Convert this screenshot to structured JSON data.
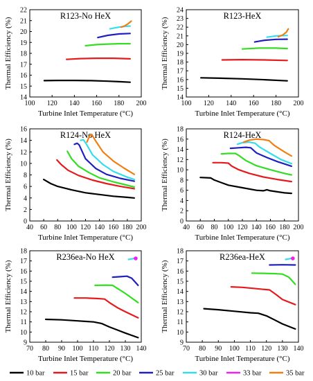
{
  "figure": {
    "series_colors": {
      "10 bar": "#000000",
      "15 bar": "#e41a1c",
      "20 bar": "#33dd22",
      "25 bar": "#1f1fbf",
      "30 bar": "#33ddee",
      "33 bar": "#ee22ee",
      "35 bar": "#f07f12"
    },
    "legend": {
      "placement": "bottom",
      "items": [
        {
          "label": "10 bar",
          "color": "#000000"
        },
        {
          "label": "15 bar",
          "color": "#e41a1c"
        },
        {
          "label": "20 bar",
          "color": "#33dd22"
        },
        {
          "label": "25 bar",
          "color": "#1f1fbf"
        },
        {
          "label": "30 bar",
          "color": "#33ddee"
        },
        {
          "label": "33 bar",
          "color": "#ee22ee"
        },
        {
          "label": "35 bar",
          "color": "#f07f12"
        }
      ]
    }
  },
  "chart_data": [
    {
      "type": "line",
      "title": "R123-No HeX",
      "xlabel": "Turbine Inlet Temperature (°C)",
      "ylabel": "Thermal Efficiency (%)",
      "xlim": [
        100,
        200
      ],
      "ylim": [
        14,
        22
      ],
      "xticks": [
        100,
        120,
        140,
        160,
        180,
        200
      ],
      "yticks": [
        14,
        15,
        16,
        17,
        18,
        19,
        20,
        21,
        22
      ],
      "grid": false,
      "series": [
        {
          "name": "10 bar",
          "color": "#000000",
          "x": [
            113,
            125,
            140,
            155,
            170,
            180,
            190
          ],
          "y": [
            15.5,
            15.52,
            15.52,
            15.5,
            15.45,
            15.4,
            15.35
          ]
        },
        {
          "name": "15 bar",
          "color": "#e41a1c",
          "x": [
            133,
            145,
            160,
            175,
            190
          ],
          "y": [
            17.45,
            17.52,
            17.55,
            17.55,
            17.5
          ]
        },
        {
          "name": "20 bar",
          "color": "#33dd22",
          "x": [
            150,
            160,
            170,
            180,
            190
          ],
          "y": [
            18.7,
            18.8,
            18.85,
            18.88,
            18.88
          ]
        },
        {
          "name": "25 bar",
          "color": "#1f1fbf",
          "x": [
            161,
            170,
            180,
            190
          ],
          "y": [
            19.45,
            19.65,
            19.78,
            19.82
          ]
        },
        {
          "name": "30 bar",
          "color": "#33ddee",
          "x": [
            172,
            180,
            186,
            190
          ],
          "y": [
            20.25,
            20.4,
            20.48,
            20.5
          ]
        },
        {
          "name": "35 bar",
          "color": "#f07f12",
          "x": [
            182,
            185,
            188,
            191
          ],
          "y": [
            20.4,
            20.5,
            20.7,
            20.95
          ]
        }
      ]
    },
    {
      "type": "line",
      "title": "R123-HeX",
      "xlabel": "Turbine Inlet Temperature (°C)",
      "ylabel": "Thermal Efficiency (%)",
      "xlim": [
        100,
        200
      ],
      "ylim": [
        14,
        24
      ],
      "xticks": [
        100,
        120,
        140,
        160,
        180,
        200
      ],
      "yticks": [
        14,
        15,
        16,
        17,
        18,
        19,
        20,
        21,
        22,
        23,
        24
      ],
      "grid": false,
      "series": [
        {
          "name": "10 bar",
          "color": "#000000",
          "x": [
            113,
            130,
            150,
            170,
            190
          ],
          "y": [
            16.2,
            16.15,
            16.08,
            15.98,
            15.85
          ]
        },
        {
          "name": "15 bar",
          "color": "#e41a1c",
          "x": [
            132,
            150,
            170,
            190
          ],
          "y": [
            18.25,
            18.28,
            18.25,
            18.18
          ]
        },
        {
          "name": "20 bar",
          "color": "#33dd22",
          "x": [
            150,
            165,
            180,
            190
          ],
          "y": [
            19.5,
            19.6,
            19.6,
            19.55
          ]
        },
        {
          "name": "25 bar",
          "color": "#1f1fbf",
          "x": [
            161,
            170,
            180,
            190
          ],
          "y": [
            20.3,
            20.5,
            20.6,
            20.62
          ]
        },
        {
          "name": "30 bar",
          "color": "#33ddee",
          "x": [
            172,
            180,
            190
          ],
          "y": [
            20.85,
            21.0,
            21.05
          ]
        },
        {
          "name": "35 bar",
          "color": "#f07f12",
          "x": [
            182,
            186,
            189,
            191
          ],
          "y": [
            20.9,
            21.1,
            21.4,
            21.8
          ]
        }
      ]
    },
    {
      "type": "line",
      "title": "R124-No HeX",
      "xlabel": "Turbine Inlet Temperature (°C)",
      "ylabel": "Thermal Efficiency (%)",
      "xlim": [
        40,
        200
      ],
      "ylim": [
        0,
        16
      ],
      "xticks": [
        40,
        60,
        80,
        100,
        120,
        140,
        160,
        180,
        200
      ],
      "yticks": [
        0,
        2,
        4,
        6,
        8,
        10,
        12,
        14,
        16
      ],
      "grid": false,
      "series": [
        {
          "name": "10 bar",
          "color": "#000000",
          "x": [
            60,
            70,
            80,
            100,
            120,
            140,
            160,
            180,
            190
          ],
          "y": [
            7.2,
            6.5,
            6.0,
            5.4,
            4.9,
            4.6,
            4.3,
            4.1,
            4.0
          ]
        },
        {
          "name": "15 bar",
          "color": "#e41a1c",
          "x": [
            79,
            85,
            95,
            110,
            130,
            150,
            170,
            190
          ],
          "y": [
            10.6,
            9.8,
            8.8,
            7.9,
            7.1,
            6.5,
            6.0,
            5.6
          ]
        },
        {
          "name": "20 bar",
          "color": "#33dd22",
          "x": [
            94,
            100,
            110,
            125,
            140,
            160,
            180,
            190
          ],
          "y": [
            12.1,
            10.8,
            9.5,
            8.4,
            7.5,
            6.8,
            6.2,
            5.9
          ]
        },
        {
          "name": "25 bar",
          "color": "#1f1fbf",
          "x": [
            104,
            108,
            111,
            120,
            135,
            150,
            170,
            190
          ],
          "y": [
            13.3,
            13.5,
            13.2,
            10.8,
            9.1,
            8.1,
            7.4,
            6.9
          ]
        },
        {
          "name": "30 bar",
          "color": "#33ddee",
          "x": [
            113,
            117,
            122,
            130,
            145,
            160,
            180,
            190
          ],
          "y": [
            14.0,
            14.1,
            13.2,
            11.5,
            9.8,
            8.6,
            7.6,
            7.2
          ]
        },
        {
          "name": "35 bar",
          "color": "#f07f12",
          "x": [
            122,
            126,
            129,
            134,
            145,
            160,
            175,
            190
          ],
          "y": [
            13.7,
            14.8,
            15.0,
            14.0,
            12.0,
            10.4,
            9.2,
            8.1
          ]
        }
      ]
    },
    {
      "type": "line",
      "title": "R124-HeX",
      "xlabel": "Turbine Inlet Temperature (°C)",
      "ylabel": "Thermal Efficiency (%)",
      "xlim": [
        40,
        200
      ],
      "ylim": [
        0,
        18
      ],
      "xticks": [
        40,
        60,
        80,
        100,
        120,
        140,
        160,
        180,
        200
      ],
      "yticks": [
        0,
        2,
        4,
        6,
        8,
        10,
        12,
        14,
        16,
        18
      ],
      "grid": false,
      "series": [
        {
          "name": "10 bar",
          "color": "#000000",
          "x": [
            60,
            70,
            75,
            80,
            90,
            100,
            120,
            140,
            150,
            155,
            160,
            170,
            180,
            190
          ],
          "y": [
            8.5,
            8.45,
            8.4,
            8.0,
            7.5,
            7.0,
            6.5,
            6.0,
            5.9,
            6.1,
            5.9,
            5.7,
            5.5,
            5.4
          ]
        },
        {
          "name": "15 bar",
          "color": "#e41a1c",
          "x": [
            78,
            90,
            100,
            105,
            115,
            130,
            150,
            170,
            190
          ],
          "y": [
            11.4,
            11.4,
            11.3,
            10.7,
            10.0,
            9.3,
            8.6,
            8.1,
            7.7
          ]
        },
        {
          "name": "20 bar",
          "color": "#33dd22",
          "x": [
            90,
            100,
            110,
            115,
            125,
            140,
            160,
            180,
            190
          ],
          "y": [
            13.1,
            13.2,
            13.2,
            12.8,
            11.8,
            10.8,
            10.0,
            9.3,
            9.0
          ]
        },
        {
          "name": "25 bar",
          "color": "#1f1fbf",
          "x": [
            103,
            115,
            125,
            132,
            140,
            155,
            170,
            190
          ],
          "y": [
            14.2,
            14.3,
            14.4,
            14.3,
            13.3,
            12.4,
            11.6,
            10.7
          ]
        },
        {
          "name": "30 bar",
          "color": "#33ddee",
          "x": [
            113,
            120,
            130,
            138,
            145,
            160,
            175,
            190
          ],
          "y": [
            15.0,
            15.3,
            15.4,
            15.2,
            14.4,
            13.2,
            12.0,
            11.2
          ]
        },
        {
          "name": "35 bar",
          "color": "#f07f12",
          "x": [
            122,
            130,
            140,
            150,
            158,
            165,
            180,
            190
          ],
          "y": [
            15.4,
            15.8,
            16.0,
            15.9,
            15.7,
            14.8,
            13.5,
            12.7
          ]
        }
      ]
    },
    {
      "type": "line",
      "title": "R236ea-No HeX",
      "xlabel": "Turbine Inlet Temperature (°C)",
      "ylabel": "Thermal Efficiency (%)",
      "xlim": [
        70,
        140
      ],
      "ylim": [
        9,
        18
      ],
      "xticks": [
        70,
        80,
        90,
        100,
        110,
        120,
        130,
        140
      ],
      "yticks": [
        9,
        10,
        11,
        12,
        13,
        14,
        15,
        16,
        17,
        18
      ],
      "grid": false,
      "series": [
        {
          "name": "10 bar",
          "color": "#000000",
          "x": [
            80,
            90,
            100,
            110,
            115,
            120,
            125,
            130,
            138
          ],
          "y": [
            11.25,
            11.2,
            11.1,
            11.0,
            10.85,
            10.5,
            10.2,
            9.9,
            9.45
          ]
        },
        {
          "name": "15 bar",
          "color": "#e41a1c",
          "x": [
            98,
            105,
            112,
            117,
            120,
            125,
            130,
            138
          ],
          "y": [
            13.35,
            13.35,
            13.3,
            13.25,
            12.9,
            12.4,
            12.0,
            11.4
          ]
        },
        {
          "name": "20 bar",
          "color": "#33dd22",
          "x": [
            111,
            118,
            122,
            125,
            130,
            138
          ],
          "y": [
            14.6,
            14.62,
            14.6,
            14.3,
            13.8,
            12.9
          ]
        },
        {
          "name": "25 bar",
          "color": "#1f1fbf",
          "x": [
            122,
            127,
            131,
            134,
            138
          ],
          "y": [
            15.4,
            15.45,
            15.5,
            15.3,
            14.6
          ]
        },
        {
          "name": "30 bar",
          "color": "#33ddee",
          "x": [
            132,
            134,
            135.5
          ],
          "y": [
            17.15,
            17.2,
            17.25
          ]
        },
        {
          "name": "33 bar",
          "color": "#ee22ee",
          "x": [
            136.5
          ],
          "y": [
            17.25
          ]
        }
      ]
    },
    {
      "type": "line",
      "title": "R236ea-HeX",
      "xlabel": "Turbine Inlet Temperature (°C)",
      "ylabel": "Thermal Efficiency (%)",
      "xlim": [
        70,
        140
      ],
      "ylim": [
        9,
        18
      ],
      "xticks": [
        70,
        80,
        90,
        100,
        110,
        120,
        130,
        140
      ],
      "yticks": [
        9,
        10,
        11,
        12,
        13,
        14,
        15,
        16,
        17,
        18
      ],
      "grid": false,
      "series": [
        {
          "name": "10 bar",
          "color": "#000000",
          "x": [
            81,
            90,
            100,
            110,
            115,
            120,
            125,
            130,
            138
          ],
          "y": [
            12.3,
            12.2,
            12.05,
            11.9,
            11.85,
            11.6,
            11.2,
            10.8,
            10.3
          ]
        },
        {
          "name": "15 bar",
          "color": "#e41a1c",
          "x": [
            98,
            105,
            112,
            118,
            122,
            126,
            130,
            138
          ],
          "y": [
            14.45,
            14.4,
            14.3,
            14.2,
            14.15,
            13.7,
            13.2,
            12.7
          ]
        },
        {
          "name": "20 bar",
          "color": "#33dd22",
          "x": [
            111,
            118,
            125,
            130,
            134,
            138
          ],
          "y": [
            15.8,
            15.78,
            15.75,
            15.7,
            15.4,
            14.7
          ]
        },
        {
          "name": "25 bar",
          "color": "#1f1fbf",
          "x": [
            122,
            130,
            138
          ],
          "y": [
            16.6,
            16.62,
            16.6
          ]
        },
        {
          "name": "30 bar",
          "color": "#33ddee",
          "x": [
            132,
            134,
            135.5
          ],
          "y": [
            17.15,
            17.2,
            17.25
          ]
        },
        {
          "name": "33 bar",
          "color": "#ee22ee",
          "x": [
            136.5
          ],
          "y": [
            17.25
          ]
        }
      ]
    }
  ]
}
